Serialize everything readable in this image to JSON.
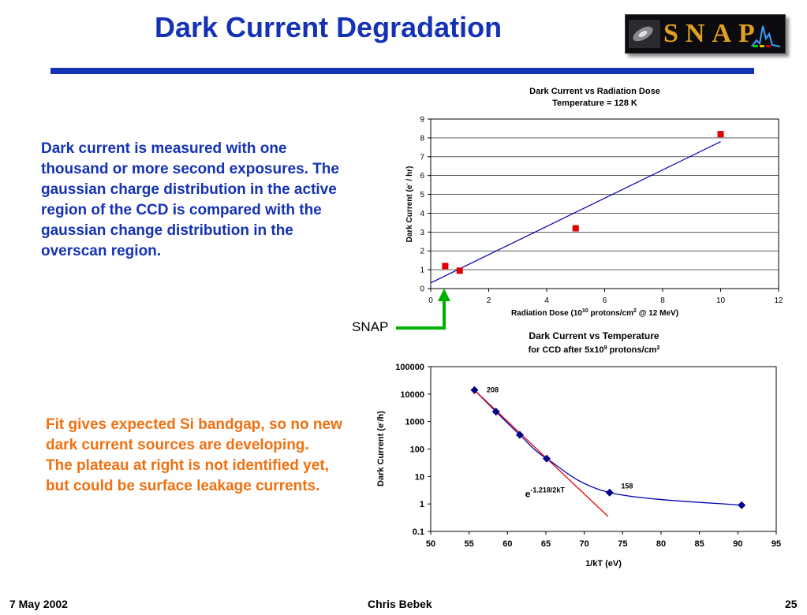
{
  "header": {
    "title": "Dark Current Degradation",
    "logo_text": "SNAP"
  },
  "left_text": {
    "paragraph_blue": "Dark current is measured with one thousand or more second exposures. The gaussian charge distribution in the active region of the CCD is compared with the gaussian change distribution in the overscan region.",
    "paragraph_orange_1": "Fit gives expected Si bandgap, so no new dark current sources are developing.",
    "paragraph_orange_2": "The plateau at right is not identified yet, but could be surface leakage currents."
  },
  "snap_arrow_label": "SNAP",
  "footer": {
    "date": "7 May 2002",
    "author": "Chris Bebek",
    "page": "25"
  },
  "colors": {
    "title_blue": "#1432b4",
    "text_orange": "#f07010",
    "marker_red": "#e00000",
    "line_blue": "#0000b4",
    "arrow_green": "#00b000",
    "marker_navy": "#00008b"
  },
  "chart_data": [
    {
      "type": "scatter",
      "title": "Dark Current vs Radiation Dose",
      "subtitle": "Temperature = 128 K",
      "xlabel": "Radiation Dose (10^10 protons/cm^2 @ 12 MeV)",
      "ylabel": "Dark Current (e- / hr)",
      "xlim": [
        0,
        12
      ],
      "ylim": [
        0,
        9
      ],
      "xticks": [
        0,
        2,
        4,
        6,
        8,
        10,
        12
      ],
      "yticks": [
        0,
        1,
        2,
        3,
        4,
        5,
        6,
        7,
        8,
        9
      ],
      "grid": "horizontal",
      "series": [
        {
          "marker": "square",
          "color": "#e00000",
          "points": [
            [
              0.5,
              1.2
            ],
            [
              1,
              0.95
            ],
            [
              5,
              3.2
            ],
            [
              10,
              8.2
            ]
          ]
        }
      ],
      "fit_line": {
        "from": [
          0,
          0.3
        ],
        "to": [
          10,
          7.8
        ],
        "color": "#0000b4"
      }
    },
    {
      "type": "line",
      "title": "Dark Current vs Temperature",
      "subtitle": "for CCD after 5x10^9 protons/cm^2",
      "xlabel": "1/kT (eV)",
      "ylabel": "Dark Current (e-/h)",
      "xlim": [
        50,
        95
      ],
      "ylim": [
        0.1,
        100000
      ],
      "yscale": "log",
      "xticks": [
        50,
        55,
        60,
        65,
        70,
        75,
        80,
        85,
        90,
        95
      ],
      "yticks": [
        0.1,
        1,
        10,
        100,
        1000,
        10000,
        100000
      ],
      "ytick_labels": [
        "0.1",
        "1",
        "10",
        "100",
        "1000",
        "10000",
        "100000"
      ],
      "grid": "none",
      "series": [
        {
          "marker": "diamond",
          "color": "#00008b",
          "points": [
            [
              55.7,
              14000
            ],
            [
              58.5,
              2300
            ],
            [
              61.6,
              330
            ],
            [
              65.1,
              45
            ],
            [
              73.3,
              2.6
            ],
            [
              90.5,
              0.9
            ]
          ]
        }
      ],
      "fit": {
        "label": "e^-1.218/2kT",
        "color": "#e00000",
        "from": [
          55.7,
          14000
        ],
        "to": [
          73.1,
          0.35
        ]
      },
      "annotations": [
        {
          "text": "208",
          "x": 57.3,
          "y": 14000
        },
        {
          "text": "158",
          "x": 74.8,
          "y": 4.5
        }
      ]
    }
  ]
}
